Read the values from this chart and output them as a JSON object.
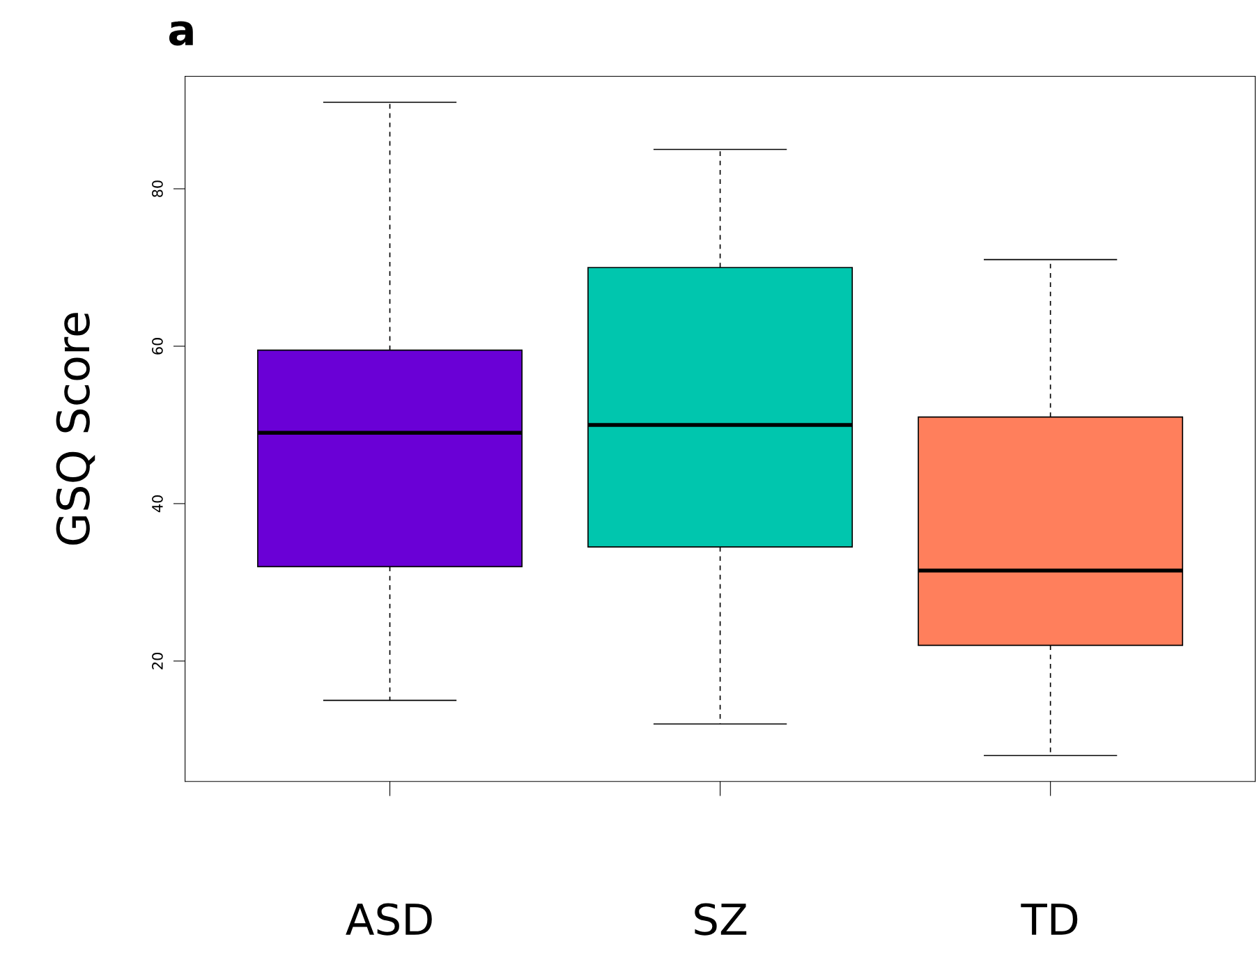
{
  "chart_data": {
    "type": "box",
    "ylabel": "GSQ Score",
    "annotations": [
      "a"
    ],
    "categories": [
      "ASD",
      "SZ",
      "TD"
    ],
    "colors": [
      "#6a00d6",
      "#00c6ae",
      "#ff7f5c"
    ],
    "boxes": [
      {
        "low": 15,
        "q1": 32,
        "median": 49,
        "q3": 59.5,
        "high": 91
      },
      {
        "low": 12,
        "q1": 34.5,
        "median": 50,
        "q3": 70,
        "high": 85
      },
      {
        "low": 8,
        "q1": 22,
        "median": 31.5,
        "q3": 51,
        "high": 71
      }
    ],
    "ylim": [
      4.7,
      94.3
    ],
    "yticks": [
      20,
      40,
      60,
      80
    ],
    "grid": false
  }
}
